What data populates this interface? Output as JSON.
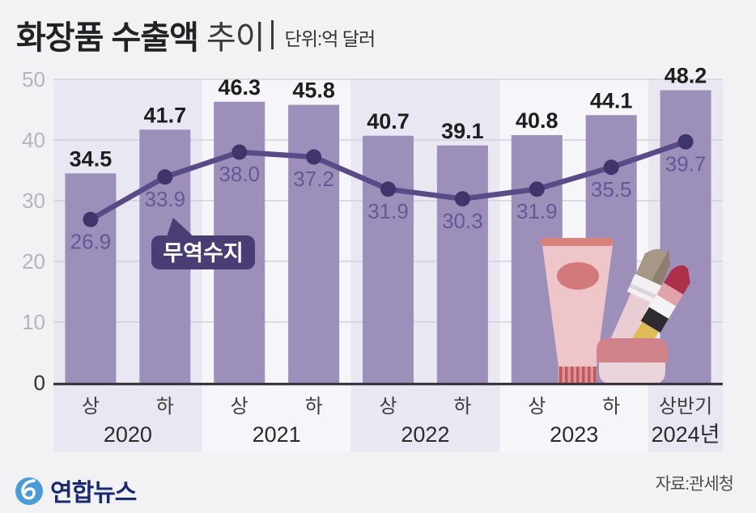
{
  "title": {
    "main": "화장품 수출액",
    "sub": "추이",
    "unit": "단위:억 달러"
  },
  "chart_data": {
    "type": "bar",
    "title": "화장품 수출액 추이",
    "unit_label": "단위:억 달러",
    "categories": [
      "2020 상",
      "2020 하",
      "2021 상",
      "2021 하",
      "2022 상",
      "2022 하",
      "2023 상",
      "2023 하",
      "2024 상반기"
    ],
    "tick_labels": [
      "상",
      "하",
      "상",
      "하",
      "상",
      "하",
      "상",
      "하",
      "상반기"
    ],
    "year_groups": [
      {
        "label": "2020",
        "cols": 2
      },
      {
        "label": "2021",
        "cols": 2
      },
      {
        "label": "2022",
        "cols": 2
      },
      {
        "label": "2023",
        "cols": 2
      },
      {
        "label": "2024년",
        "cols": 1
      }
    ],
    "series": [
      {
        "name": "수출액",
        "type": "bar",
        "values": [
          34.5,
          41.7,
          46.3,
          45.8,
          40.7,
          39.1,
          40.8,
          44.1,
          48.2
        ]
      },
      {
        "name": "무역수지",
        "type": "line",
        "values": [
          26.9,
          33.9,
          38.0,
          37.2,
          31.9,
          30.3,
          31.9,
          35.5,
          39.7
        ]
      }
    ],
    "annotation": {
      "label": "무역수지",
      "anchor_index": 1
    },
    "ylim": [
      0,
      50
    ],
    "yticks": [
      0,
      10,
      20,
      30,
      40,
      50
    ],
    "grid": true,
    "legend_position": "callout-bubble"
  },
  "footer": {
    "brand": "연합뉴스",
    "source": "자료:관세청"
  },
  "colors": {
    "bg": "#f2f1f4",
    "band": "#e9e7f1",
    "band_alt": "#f6f5f9",
    "grid": "#cdcbd5",
    "bar": "#9c8fb9",
    "line": "#5a4a87",
    "dot": "#41346b",
    "bar_label": "#1e1e1e",
    "line_label": "#665896",
    "bubble_bg": "#4a3d74",
    "bubble_text": "#ffffff",
    "axis": "#39363c",
    "ytick": "#b6b4bc",
    "ytick_zero": "#2f2f2f",
    "xtick": "#3d3d3d",
    "year": "#2b2b2b",
    "brand_blue": "#1b2a70",
    "icon_blue": "#4a9bd8"
  }
}
